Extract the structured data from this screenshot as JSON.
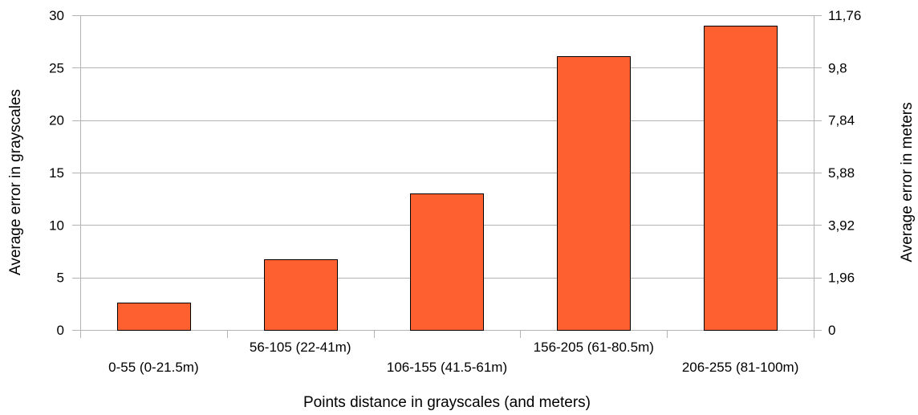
{
  "chart_data": {
    "type": "bar",
    "title": "",
    "categories": [
      "0-55 (0-21.5m)",
      "56-105 (22-41m)",
      "106-155 (41.5-61m)",
      "156-205 (61-80.5m)",
      "206-255 (81-100m)"
    ],
    "values": [
      2.6,
      6.7,
      13,
      26.1,
      29
    ],
    "xlabel": "Points distance in grayscales (and meters)",
    "ylabel": "Average error in grayscales",
    "y2label": "Average error in meters",
    "ylim": [
      0,
      30
    ],
    "yticks": [
      "0",
      "5",
      "10",
      "15",
      "20",
      "25",
      "30"
    ],
    "y2ticks": [
      "0",
      "1,96",
      "3,92",
      "5,88",
      "7,84",
      "9,8",
      "11,76"
    ],
    "grid": true,
    "legend": "none",
    "bar_color": "#ff6030"
  }
}
